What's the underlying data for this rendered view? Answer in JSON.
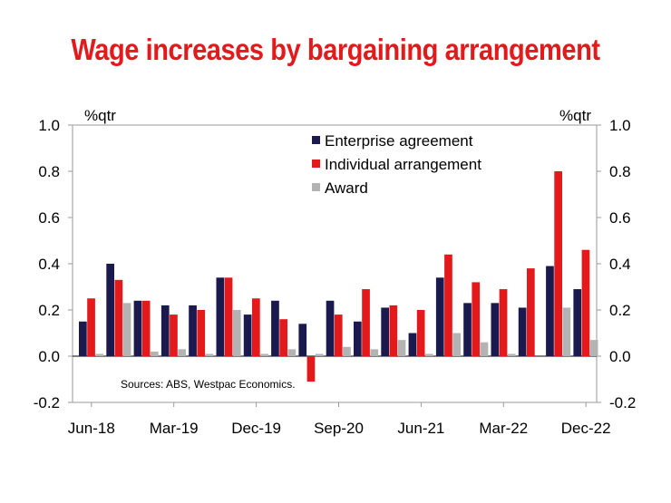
{
  "chart_data": {
    "type": "bar",
    "title": "Wage increases by bargaining arrangement",
    "title_color": "#e3191b",
    "ylabel_left": "%qtr",
    "ylabel_right": "%qtr",
    "ylim": [
      -0.2,
      1.0
    ],
    "yticks": [
      1.0,
      0.8,
      0.6,
      0.4,
      0.2,
      0.0,
      -0.2
    ],
    "ytick_labels": [
      "1.0",
      "0.8",
      "0.6",
      "0.4",
      "0.2",
      "0.0",
      "-0.2"
    ],
    "xtick_labels": [
      "Jun-18",
      "Mar-19",
      "Dec-19",
      "Sep-20",
      "Jun-21",
      "Mar-22",
      "Dec-22"
    ],
    "xtick_every": 3,
    "categories": [
      "Jun-18",
      "Sep-18",
      "Dec-18",
      "Mar-19",
      "Jun-19",
      "Sep-19",
      "Dec-19",
      "Mar-20",
      "Jun-20",
      "Sep-20",
      "Dec-20",
      "Mar-21",
      "Jun-21",
      "Sep-21",
      "Dec-21",
      "Mar-22",
      "Jun-22",
      "Sep-22",
      "Dec-22"
    ],
    "series": [
      {
        "name": "Enterprise agreement",
        "color": "#1a1a4e",
        "values": [
          0.15,
          0.4,
          0.24,
          0.22,
          0.22,
          0.34,
          0.18,
          0.24,
          0.14,
          0.24,
          0.15,
          0.21,
          0.1,
          0.34,
          0.23,
          0.23,
          0.21,
          0.39,
          0.29
        ]
      },
      {
        "name": "Individual arrangement",
        "color": "#e3191b",
        "values": [
          0.25,
          0.33,
          0.24,
          0.18,
          0.2,
          0.34,
          0.25,
          0.16,
          -0.11,
          0.18,
          0.29,
          0.22,
          0.2,
          0.44,
          0.32,
          0.29,
          0.38,
          0.8,
          0.46
        ]
      },
      {
        "name": "Award",
        "color": "#b3b3b3",
        "values": [
          0.01,
          0.23,
          0.02,
          0.03,
          0.01,
          0.2,
          0.01,
          0.03,
          0.01,
          0.04,
          0.03,
          0.07,
          0.01,
          0.1,
          0.06,
          0.01,
          0.0,
          0.21,
          0.07
        ]
      }
    ],
    "legend_position": "top-center",
    "annotation": "Sources: ABS, Westpac Economics.",
    "grid": false
  }
}
